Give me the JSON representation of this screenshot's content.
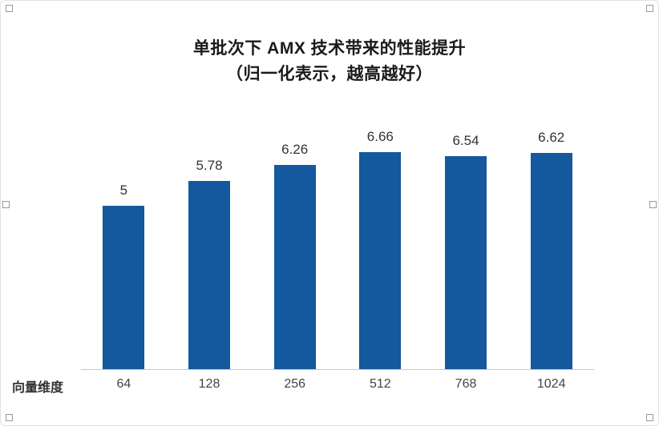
{
  "title": {
    "line1": "单批次下 AMX 技术带来的性能提升",
    "line2": "（归一化表示，越高越好）"
  },
  "axis": {
    "x_axis_title": "向量维度"
  },
  "chart_data": {
    "type": "bar",
    "title": "单批次下 AMX 技术带来的性能提升（归一化表示，越高越好）",
    "categories": [
      "64",
      "128",
      "256",
      "512",
      "768",
      "1024"
    ],
    "values": [
      5,
      5.78,
      6.26,
      6.66,
      6.54,
      6.62
    ],
    "data_labels": [
      "5",
      "5.78",
      "6.26",
      "6.66",
      "6.54",
      "6.62"
    ],
    "xlabel": "向量维度",
    "ylabel": "",
    "ylim": [
      0,
      7
    ],
    "grid": false,
    "legend": false,
    "bar_color": "#14589E",
    "axis_line_color": "#c9c9c9"
  }
}
